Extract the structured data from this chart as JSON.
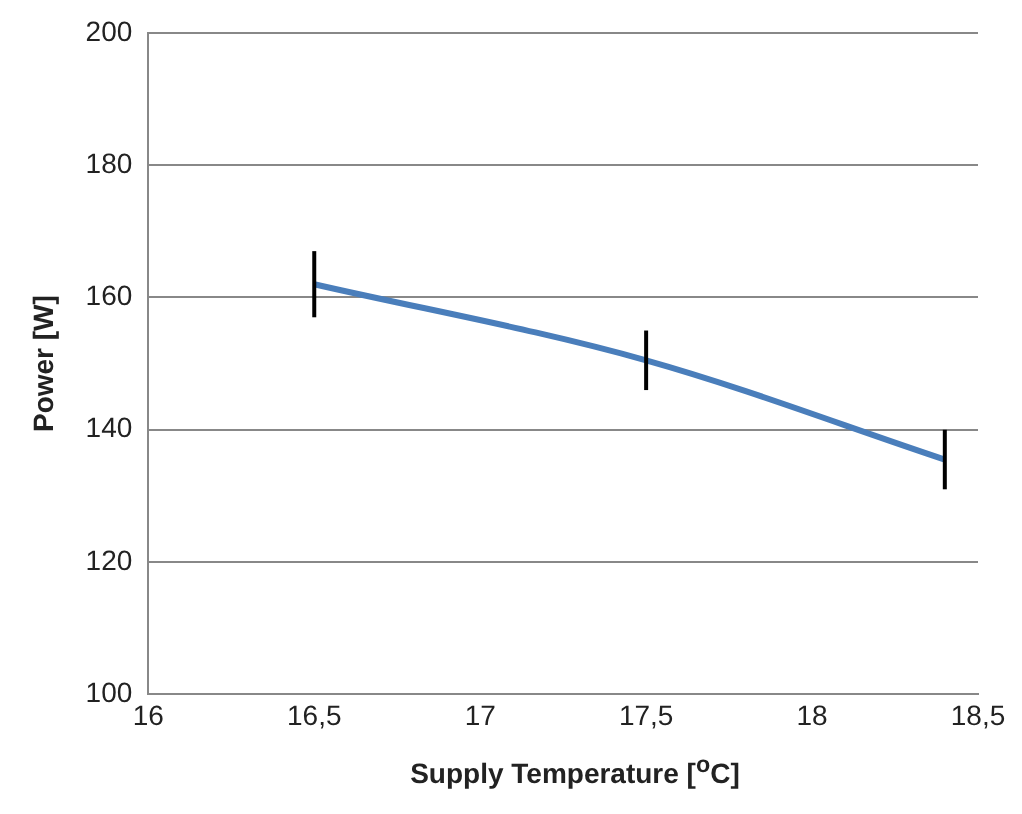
{
  "chart_data": {
    "type": "line",
    "xlabel": "Supply Temperature [$^{o}$C]",
    "ylabel": "Power [W]",
    "x": [
      16.5,
      17.5,
      18.4
    ],
    "series": [
      {
        "color": "#4a7ebb",
        "values": [
          162,
          150.5,
          135.5
        ],
        "errors": [
          5,
          4.5,
          4.5
        ]
      }
    ],
    "xlim": [
      16,
      18.5
    ],
    "xticks": [
      16,
      {
        "value": 16.5,
        "label": "16,5"
      },
      17,
      {
        "value": 17.5,
        "label": "17,5"
      },
      18,
      {
        "value": 18.5,
        "label": "18,5"
      }
    ],
    "ylim": [
      100,
      200
    ],
    "yticks": [
      100,
      120,
      140,
      160,
      180,
      200
    ],
    "grid": "y",
    "legend": false,
    "marker": "none",
    "line_style": "solid"
  }
}
